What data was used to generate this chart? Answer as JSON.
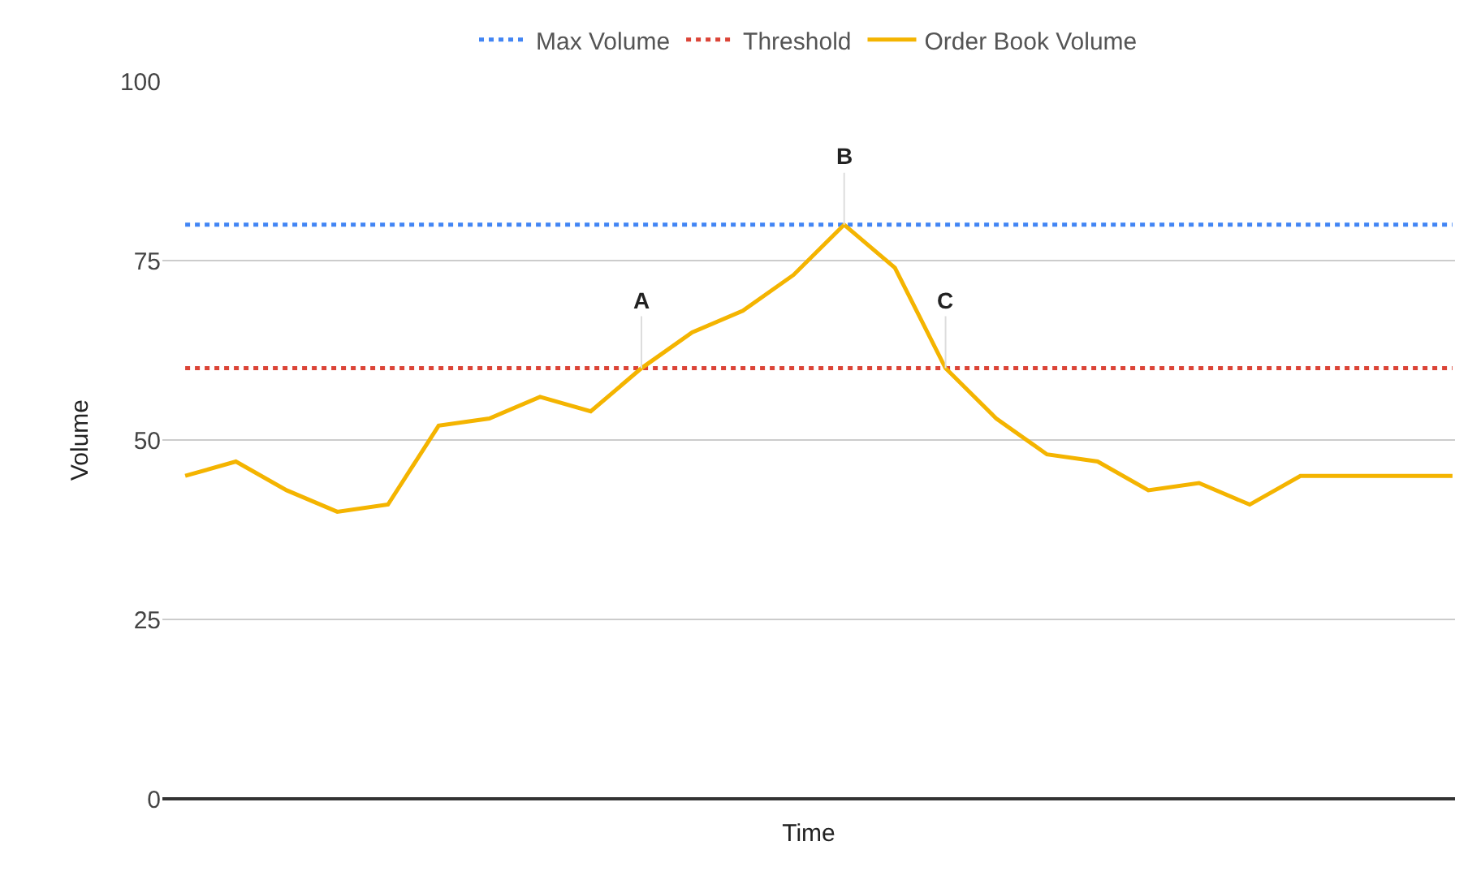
{
  "chart_data": {
    "type": "line",
    "xlabel": "Time",
    "ylabel": "Volume",
    "categories": [
      null,
      null,
      null,
      null,
      null,
      null,
      null,
      null,
      null,
      null,
      null,
      null,
      null,
      null,
      null,
      null,
      null,
      null,
      null,
      null,
      null,
      null,
      null,
      null,
      null,
      null
    ],
    "series": [
      {
        "name": "Max Volume",
        "color": "#4285f4",
        "line_style": "dotted",
        "values": [
          80,
          80,
          80,
          80,
          80,
          80,
          80,
          80,
          80,
          80,
          80,
          80,
          80,
          80,
          80,
          80,
          80,
          80,
          80,
          80,
          80,
          80,
          80,
          80,
          80,
          80
        ]
      },
      {
        "name": "Threshold",
        "color": "#db4437",
        "line_style": "dotted",
        "values": [
          60,
          60,
          60,
          60,
          60,
          60,
          60,
          60,
          60,
          60,
          60,
          60,
          60,
          60,
          60,
          60,
          60,
          60,
          60,
          60,
          60,
          60,
          60,
          60,
          60,
          60
        ]
      },
      {
        "name": "Order Book Volume",
        "color": "#f4b400",
        "line_style": "solid",
        "values": [
          45,
          47,
          43,
          40,
          41,
          52,
          53,
          56,
          54,
          60,
          65,
          68,
          73,
          80,
          74,
          60,
          53,
          48,
          47,
          43,
          44,
          41,
          45,
          45,
          45,
          45
        ],
        "value_labels": [
          null,
          null,
          null,
          null,
          null,
          null,
          null,
          null,
          null,
          "A",
          null,
          null,
          null,
          "B",
          null,
          "C",
          null,
          null,
          null,
          null,
          null,
          null,
          null,
          null,
          null,
          null
        ]
      }
    ],
    "ylim": [
      0,
      100
    ],
    "yticks": [
      0,
      25,
      50,
      75,
      100
    ],
    "grid": "y",
    "legend": "top",
    "marker": "none"
  }
}
